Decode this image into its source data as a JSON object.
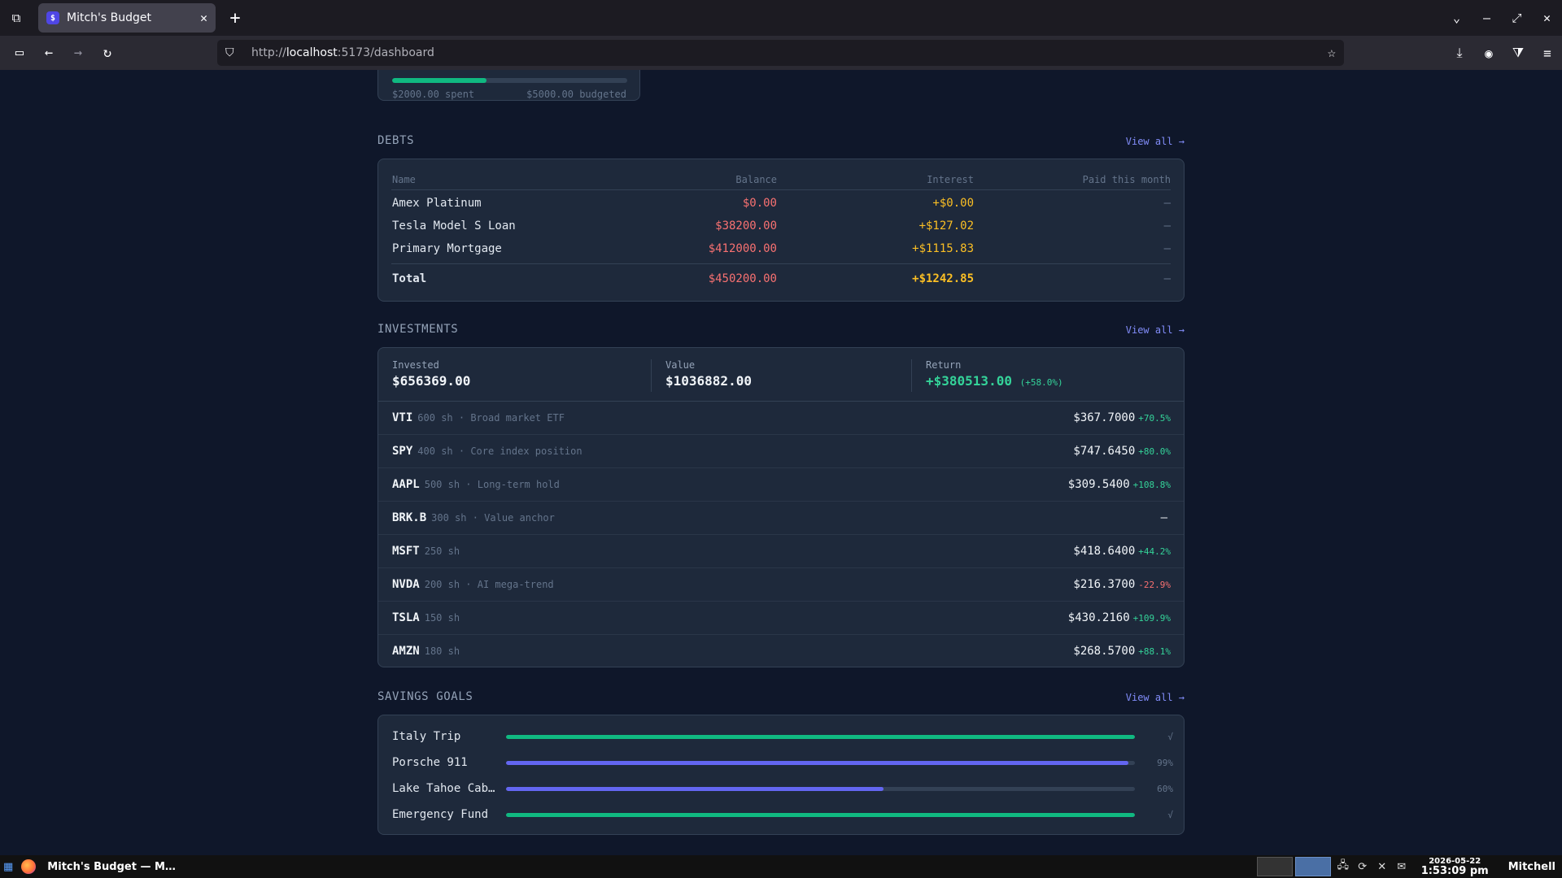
{
  "browser": {
    "tab_title": "Mitch's Budget",
    "tab_favicon": "$",
    "url_prefix": "http://",
    "url_host": "localhost",
    "url_path": ":5173/dashboard"
  },
  "budget": {
    "spent": "$2000.00 spent",
    "budgeted": "$5000.00 budgeted",
    "progress": 0.4
  },
  "debts": {
    "title": "DEBTS",
    "view_all": "View all →",
    "headers": {
      "name": "Name",
      "balance": "Balance",
      "interest": "Interest",
      "paid": "Paid this month"
    },
    "rows": [
      {
        "name": "Amex Platinum",
        "balance": "$0.00",
        "interest": "+$0.00",
        "paid": "—"
      },
      {
        "name": "Tesla Model S Loan",
        "balance": "$38200.00",
        "interest": "+$127.02",
        "paid": "—"
      },
      {
        "name": "Primary Mortgage",
        "balance": "$412000.00",
        "interest": "+$1115.83",
        "paid": "—"
      }
    ],
    "total": {
      "label": "Total",
      "balance": "$450200.00",
      "interest": "+$1242.85",
      "paid": "—"
    }
  },
  "investments": {
    "title": "INVESTMENTS",
    "view_all": "View all →",
    "summary": {
      "invested_label": "Invested",
      "invested": "$656369.00",
      "value_label": "Value",
      "value": "$1036882.00",
      "return_label": "Return",
      "return": "+$380513.00",
      "return_pct": "(+58.0%)"
    },
    "holdings": [
      {
        "ticker": "VTI",
        "meta": "600 sh · Broad market ETF",
        "price": "$367.7000",
        "change": "+70.5%",
        "dir": "pos"
      },
      {
        "ticker": "SPY",
        "meta": "400 sh · Core index position",
        "price": "$747.6450",
        "change": "+80.0%",
        "dir": "pos"
      },
      {
        "ticker": "AAPL",
        "meta": "500 sh · Long-term hold",
        "price": "$309.5400",
        "change": "+108.8%",
        "dir": "pos"
      },
      {
        "ticker": "BRK.B",
        "meta": "300 sh · Value anchor",
        "price": "—",
        "change": "",
        "dir": "muted"
      },
      {
        "ticker": "MSFT",
        "meta": "250 sh",
        "price": "$418.6400",
        "change": "+44.2%",
        "dir": "pos"
      },
      {
        "ticker": "NVDA",
        "meta": "200 sh · AI mega-trend",
        "price": "$216.3700",
        "change": "-22.9%",
        "dir": "neg"
      },
      {
        "ticker": "TSLA",
        "meta": "150 sh",
        "price": "$430.2160",
        "change": "+109.9%",
        "dir": "pos"
      },
      {
        "ticker": "AMZN",
        "meta": "180 sh",
        "price": "$268.5700",
        "change": "+88.1%",
        "dir": "pos"
      }
    ]
  },
  "savings": {
    "title": "SAVINGS GOALS",
    "view_all": "View all →",
    "goals": [
      {
        "name": "Italy Trip",
        "progress": 1.0,
        "label": "√",
        "color": "#10b981"
      },
      {
        "name": "Porsche 911",
        "progress": 0.99,
        "label": "99%",
        "color": "#6366f1"
      },
      {
        "name": "Lake Tahoe Cab…",
        "progress": 0.6,
        "label": "60%",
        "color": "#6366f1"
      },
      {
        "name": "Emergency Fund",
        "progress": 1.0,
        "label": "√",
        "color": "#10b981"
      }
    ]
  },
  "taskbar": {
    "window_title": "Mitch's Budget — M…",
    "date": "2026-05-22",
    "time": "1:53:09 pm",
    "user": "Mitchell"
  }
}
